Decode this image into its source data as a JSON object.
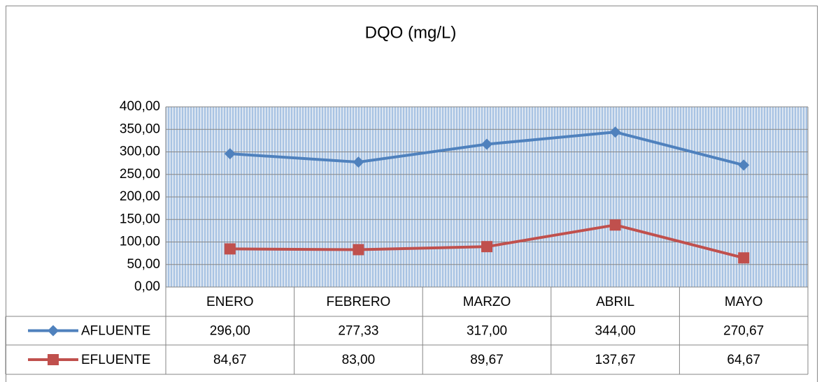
{
  "chart_data": {
    "type": "line",
    "title": "DQO (mg/L)",
    "categories": [
      "ENERO",
      "FEBRERO",
      "MARZO",
      "ABRIL",
      "MAYO"
    ],
    "series": [
      {
        "name": "AFLUENTE",
        "color": "#4f81bd",
        "marker": "diamond",
        "values": [
          296.0,
          277.33,
          317.0,
          344.0,
          270.67
        ],
        "value_labels": [
          "296,00",
          "277,33",
          "317,00",
          "344,00",
          "270,67"
        ]
      },
      {
        "name": "EFLUENTE",
        "color": "#c0504d",
        "marker": "square",
        "values": [
          84.67,
          83.0,
          89.67,
          137.67,
          64.67
        ],
        "value_labels": [
          "84,67",
          "83,00",
          "89,67",
          "137,67",
          "64,67"
        ]
      }
    ],
    "ylim": [
      0,
      400
    ],
    "yticks": [
      {
        "value": 0,
        "label": "0,00"
      },
      {
        "value": 50,
        "label": "50,00"
      },
      {
        "value": 100,
        "label": "100,00"
      },
      {
        "value": 150,
        "label": "150,00"
      },
      {
        "value": 200,
        "label": "200,00"
      },
      {
        "value": 250,
        "label": "250,00"
      },
      {
        "value": 300,
        "label": "300,00"
      },
      {
        "value": 350,
        "label": "350,00"
      },
      {
        "value": 400,
        "label": "400,00"
      }
    ],
    "grid": true
  }
}
